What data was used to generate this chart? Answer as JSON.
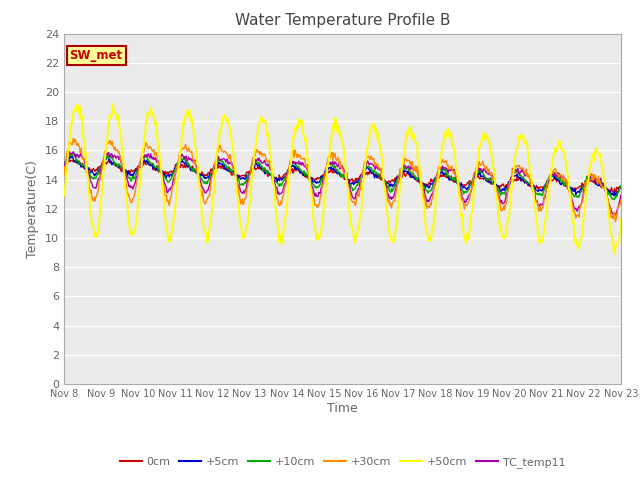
{
  "title": "Water Temperature Profile B",
  "xlabel": "Time",
  "ylabel": "Temperature(C)",
  "ylim": [
    0,
    24
  ],
  "yticks": [
    0,
    2,
    4,
    6,
    8,
    10,
    12,
    14,
    16,
    18,
    20,
    22,
    24
  ],
  "background_color": "#ffffff",
  "plot_bg_color": "#ebebeb",
  "series": {
    "0cm": {
      "color": "#cc0000",
      "lw": 1.0
    },
    "+5cm": {
      "color": "#0000cc",
      "lw": 1.0
    },
    "+10cm": {
      "color": "#00aa00",
      "lw": 1.0
    },
    "+30cm": {
      "color": "#ff8800",
      "lw": 1.0
    },
    "+50cm": {
      "color": "#ffff00",
      "lw": 1.4
    },
    "TC_temp11": {
      "color": "#aa00aa",
      "lw": 1.0
    }
  },
  "annotation_text": "SW_met",
  "annotation_bg": "#ffff99",
  "annotation_border": "#aa0000",
  "title_color": "#444444",
  "axis_label_color": "#666666",
  "tick_color": "#666666",
  "tick_fontsize": 7,
  "legend_fontsize": 8,
  "title_fontsize": 11,
  "ylabel_fontsize": 9,
  "xlabel_fontsize": 9
}
